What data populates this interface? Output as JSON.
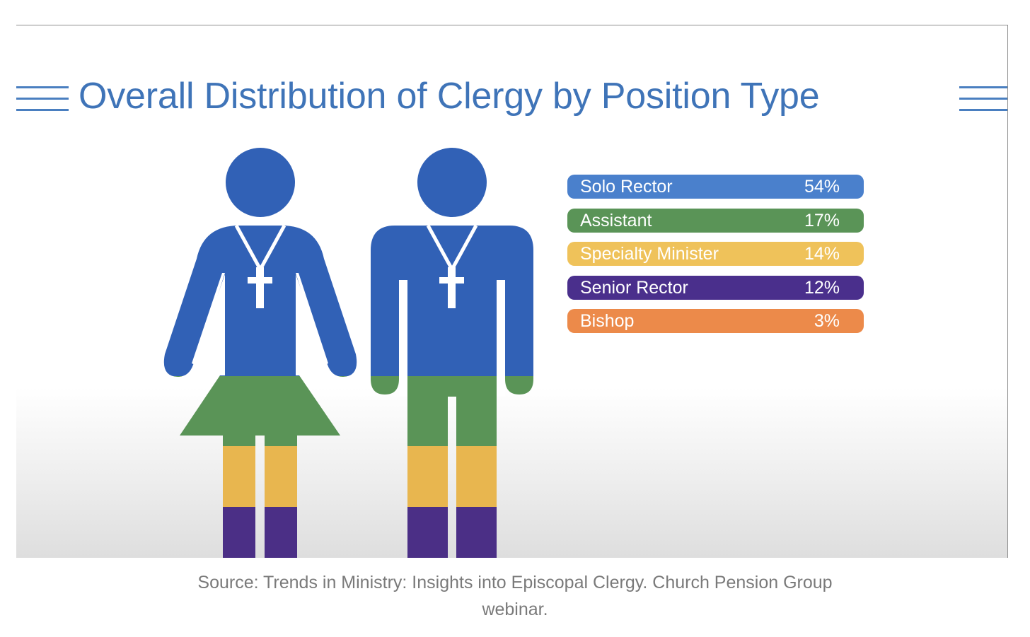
{
  "slide": {
    "title": "Overall Distribution of Clergy by Position Type"
  },
  "chart_data": {
    "type": "bar",
    "title": "Overall Distribution of Clergy by Position Type",
    "categories": [
      "Solo Rector",
      "Assistant",
      "Specialty Minister",
      "Senior Rector",
      "Bishop"
    ],
    "values": [
      54,
      17,
      14,
      12,
      3
    ],
    "value_labels": [
      "54%",
      "17%",
      "14%",
      "12%",
      "3%"
    ],
    "colors": [
      "#4a80cc",
      "#5a9457",
      "#efc25a",
      "#4a2f8c",
      "#ec8a4a"
    ],
    "unit": "%"
  },
  "caption": {
    "text": "Source: Trends in Ministry: Insights into Episcopal Clergy. Church Pension Group webinar."
  }
}
